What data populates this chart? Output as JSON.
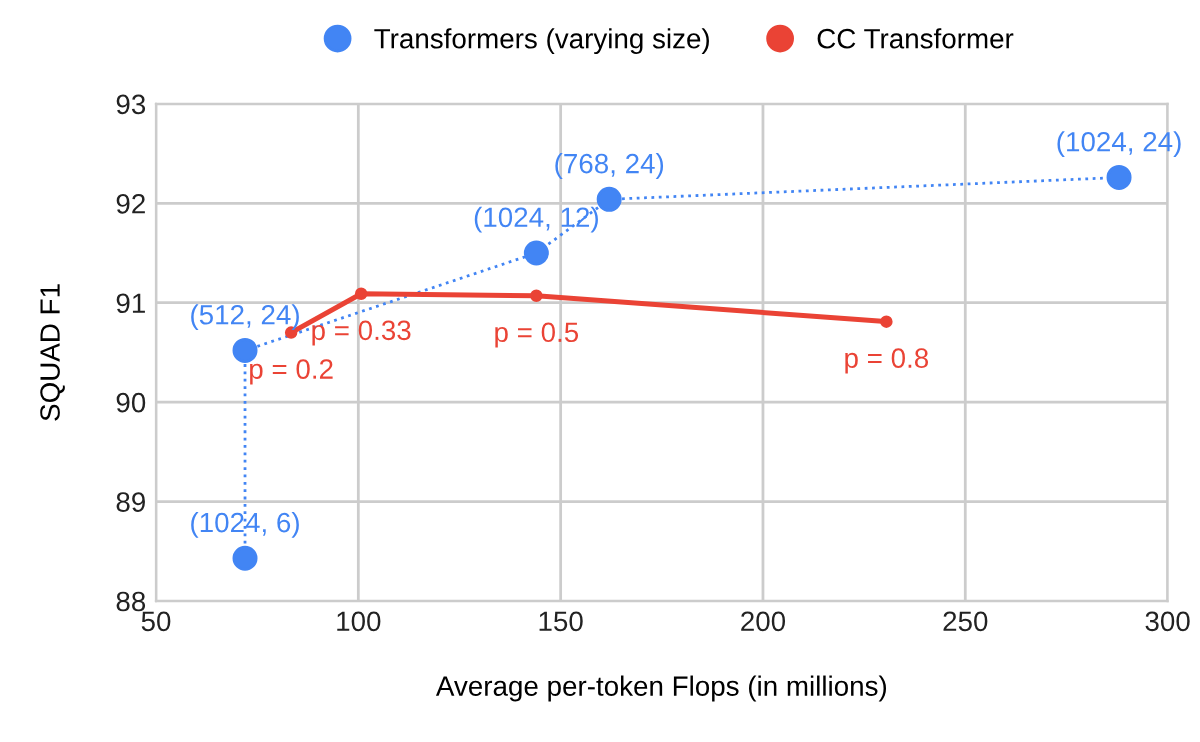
{
  "chart_data": {
    "type": "line",
    "xlabel": "Average per-token Flops (in millions)",
    "ylabel": "SQUAD F1",
    "xlim": [
      50,
      300
    ],
    "xticks": [
      50,
      100,
      150,
      200,
      250,
      300
    ],
    "ylim": [
      88,
      93
    ],
    "yticks": [
      88,
      89,
      90,
      91,
      92,
      93
    ],
    "grid": true,
    "legend": "top",
    "marker": "circle",
    "series": [
      {
        "name": "Transformers (varying size)",
        "color": "#4285f4",
        "line_style": "dotted",
        "x": [
          72,
          72,
          144,
          162,
          288
        ],
        "values": [
          88.43,
          90.52,
          91.5,
          92.04,
          92.26
        ]
      },
      {
        "name": "CC Transformer",
        "color": "#ea4335",
        "line_style": "solid",
        "x": [
          83.4,
          100.7,
          144,
          230.5
        ],
        "values": [
          90.7,
          91.09,
          91.07,
          90.81
        ]
      }
    ],
    "annotations": [
      {
        "text": "(1024, 6)",
        "x": 72,
        "y": 88.43
      },
      {
        "text": "(512, 24)",
        "x": 72,
        "y": 90.52
      },
      {
        "text": "(1024, 12)",
        "x": 144,
        "y": 91.5
      },
      {
        "text": "(768, 24)",
        "x": 162,
        "y": 92.04
      },
      {
        "text": "(1024, 24)",
        "x": 288,
        "y": 92.26
      },
      {
        "text": "p = 0.2",
        "x": 83.4,
        "y": 90.7
      },
      {
        "text": "p = 0.33",
        "x": 100.7,
        "y": 91.09
      },
      {
        "text": "p = 0.5",
        "x": 144,
        "y": 91.07
      },
      {
        "text": "p = 0.8",
        "x": 230.5,
        "y": 90.81
      }
    ]
  }
}
